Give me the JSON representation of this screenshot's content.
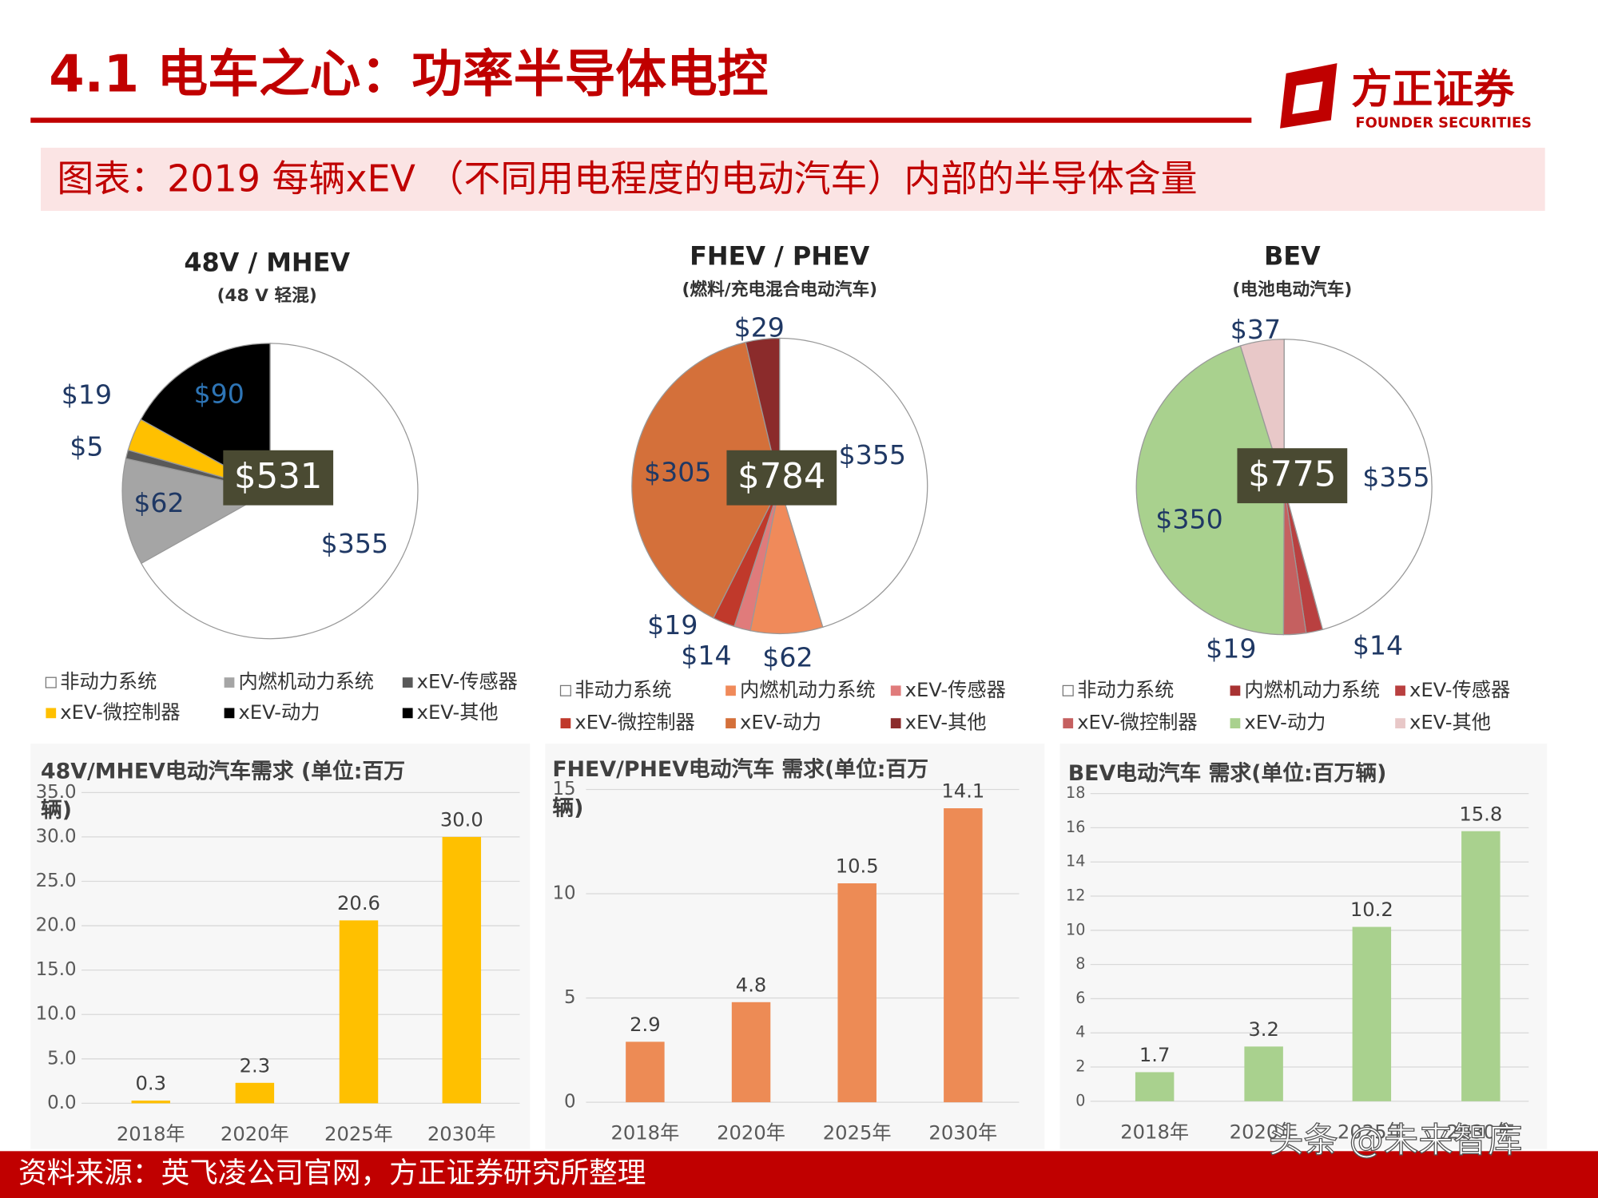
{
  "header": {
    "title": "4.1 电车之心：功率半导体电控",
    "logo_cn": "方正证券",
    "logo_en": "FOUNDER SECURITIES"
  },
  "subtitle": "图表：2019 每辆xEV （不同用电程度的电动汽车）内部的半导体含量",
  "chart_data": [
    {
      "type": "pie",
      "title": "48V / MHEV",
      "subtitle": "(48 V 轻混)",
      "categories": [
        "非动力系统",
        "内燃机动力系统",
        "xEV-传感器",
        "xEV-微控制器",
        "xEV-动力",
        "xEV-其他"
      ],
      "values": [
        355,
        62,
        5,
        19,
        90,
        null
      ],
      "value_labels": [
        "$355",
        "$62",
        "$5",
        "$19",
        "$90",
        null
      ],
      "colors": [
        "#ffffff",
        "#a5a5a5",
        "#595959",
        "#ffc000",
        "#000000",
        "#000000"
      ],
      "total": {
        "value": 531,
        "label": "$531"
      }
    },
    {
      "type": "pie",
      "title": "FHEV / PHEV",
      "subtitle": "(燃料/充电混合电动汽车)",
      "categories": [
        "非动力系统",
        "内燃机动力系统",
        "xEV-传感器",
        "xEV-微控制器",
        "xEV-动力",
        "xEV-其他"
      ],
      "values": [
        355,
        62,
        14,
        19,
        305,
        29
      ],
      "value_labels": [
        "$355",
        "$62",
        "$14",
        "$19",
        "$305",
        "$29"
      ],
      "colors": [
        "#ffffff",
        "#f08a5a",
        "#e07b7b",
        "#c0392b",
        "#d4703a",
        "#8b2b2b"
      ],
      "total": {
        "value": 784,
        "label": "$784"
      }
    },
    {
      "type": "pie",
      "title": "BEV",
      "subtitle": "(电池电动汽车)",
      "categories": [
        "非动力系统",
        "内燃机动力系统",
        "xEV-传感器",
        "xEV-微控制器",
        "xEV-动力",
        "xEV-其他"
      ],
      "values": [
        355,
        null,
        14,
        19,
        350,
        37
      ],
      "value_labels": [
        "$355",
        null,
        "$14",
        "$19",
        "$350",
        "$37"
      ],
      "colors": [
        "#ffffff",
        "#a83232",
        "#b94040",
        "#c56060",
        "#a9d18e",
        "#e8c8c8"
      ],
      "total": {
        "value": 775,
        "label": "$775"
      }
    },
    {
      "type": "bar",
      "title": "48V/MHEV电动汽车需求 (单位:百万辆)",
      "categories": [
        "2018年",
        "2020年",
        "2025年",
        "2030年"
      ],
      "values": [
        0.3,
        2.3,
        20.6,
        30
      ],
      "value_labels": [
        "0.3",
        "2.3",
        "20.6",
        "30.0"
      ],
      "color": "#ffc000",
      "ylim": [
        0,
        35
      ],
      "yticks": [
        {
          "value": 0,
          "label": "0.0"
        },
        {
          "value": 5,
          "label": "5.0"
        },
        {
          "value": 10,
          "label": "10.0"
        },
        {
          "value": 15,
          "label": "15.0"
        },
        {
          "value": 20,
          "label": "20.0"
        },
        {
          "value": 25,
          "label": "25.0"
        },
        {
          "value": 30,
          "label": "30.0"
        },
        {
          "value": 35,
          "label": "35.0"
        }
      ],
      "grid": true
    },
    {
      "type": "bar",
      "title": "FHEV/PHEV电动汽车 需求(单位:百万辆)",
      "categories": [
        "2018年",
        "2020年",
        "2025年",
        "2030年"
      ],
      "values": [
        2.9,
        4.8,
        10.5,
        14.1
      ],
      "color": "#ed8b55",
      "ylim": [
        0,
        15
      ],
      "yticks": [
        0,
        5,
        10,
        15
      ],
      "grid": true
    },
    {
      "type": "bar",
      "title": "BEV电动汽车 需求(单位:百万辆)",
      "categories": [
        "2018年",
        "2020年",
        "2025年",
        "2030年"
      ],
      "values": [
        1.7,
        3.2,
        10.2,
        15.8
      ],
      "color": "#a9d18e",
      "ylim": [
        0,
        18
      ],
      "yticks": [
        0,
        2,
        4,
        6,
        8,
        10,
        12,
        14,
        16,
        18
      ],
      "grid": true
    }
  ],
  "footer": {
    "source": "资料来源：英飞凌公司官网，方正证券研究所整理",
    "watermark": "头条 @未来智库"
  }
}
